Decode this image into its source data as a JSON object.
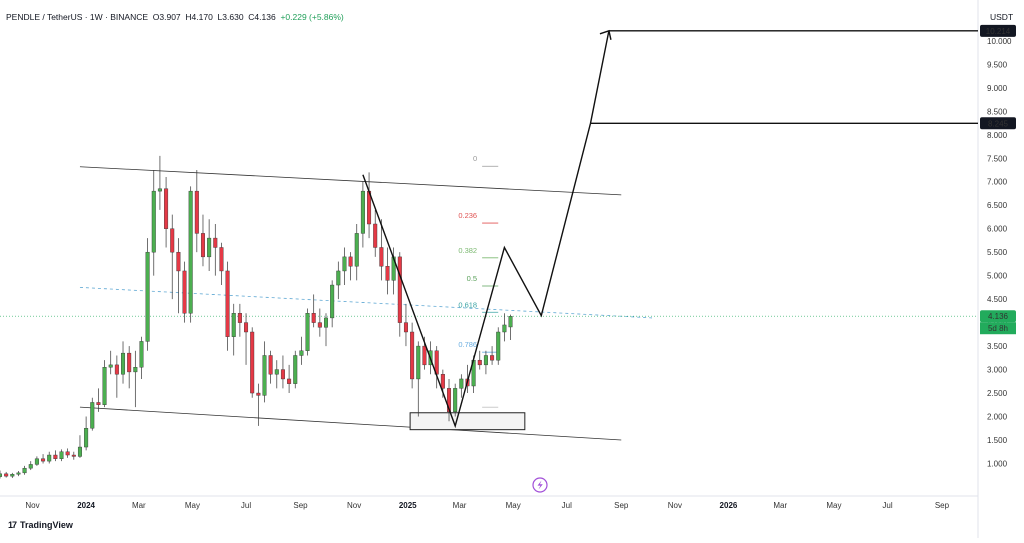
{
  "header": {
    "symbol_line": "PENDLE / TetherUS · 1W · BINANCE",
    "open": "O3.907",
    "high": "H4.170",
    "low": "L3.630",
    "close": "C4.136",
    "change": "+0.229 (+5.86%)",
    "currency": "USDT"
  },
  "footer": {
    "brand": "TradingView",
    "brand_mark": "17"
  },
  "price_tags": {
    "target_high": "10.214",
    "target_mid": "8.245",
    "current": "4.136",
    "countdown": "5d 8h"
  },
  "colors": {
    "up": "#4caf50",
    "down": "#e53946",
    "current_tag": "#22ab5c",
    "fib_dot": "#5fa8d3",
    "fib_0": "#999999",
    "fib_0236": "#e05353",
    "fib_0382": "#7cb971",
    "fib_05": "#5aa05a",
    "fib_0618": "#3aa3a3",
    "fib_0786": "#6aaee0"
  },
  "chart_data": {
    "type": "candlestick",
    "title": "",
    "xlabel": "",
    "ylabel": "",
    "ylim": [
      0.35,
      10.7
    ],
    "y_ticks": [
      1.0,
      1.5,
      2.0,
      2.5,
      3.0,
      3.5,
      4.0,
      4.5,
      5.0,
      5.5,
      6.0,
      6.5,
      7.0,
      7.5,
      8.0,
      8.5,
      9.0,
      9.5,
      10.0
    ],
    "y_tick_labels": [
      "1.000",
      "1.500",
      "2.000",
      "2.500",
      "3.000",
      "3.500",
      "4.000",
      "4.500",
      "5.000",
      "5.500",
      "6.000",
      "6.500",
      "7.000",
      "7.500",
      "8.000",
      "8.500",
      "9.000",
      "9.500",
      "10.000"
    ],
    "x_ticks": [
      {
        "label": "Nov",
        "date": "2023-11-01",
        "bold": false
      },
      {
        "label": "2024",
        "date": "2024-01-01",
        "bold": true
      },
      {
        "label": "Mar",
        "date": "2024-03-01",
        "bold": false
      },
      {
        "label": "May",
        "date": "2024-05-01",
        "bold": false
      },
      {
        "label": "Jul",
        "date": "2024-07-01",
        "bold": false
      },
      {
        "label": "Sep",
        "date": "2024-09-01",
        "bold": false
      },
      {
        "label": "Nov",
        "date": "2024-11-01",
        "bold": false
      },
      {
        "label": "2025",
        "date": "2025-01-01",
        "bold": true
      },
      {
        "label": "Mar",
        "date": "2025-03-01",
        "bold": false
      },
      {
        "label": "May",
        "date": "2025-05-01",
        "bold": false
      },
      {
        "label": "Jul",
        "date": "2025-07-01",
        "bold": false
      },
      {
        "label": "Sep",
        "date": "2025-09-01",
        "bold": false
      },
      {
        "label": "Nov",
        "date": "2025-11-01",
        "bold": false
      },
      {
        "label": "2026",
        "date": "2026-01-01",
        "bold": true
      },
      {
        "label": "Mar",
        "date": "2026-03-01",
        "bold": false
      },
      {
        "label": "May",
        "date": "2026-05-01",
        "bold": false
      },
      {
        "label": "Jul",
        "date": "2026-07-01",
        "bold": false
      },
      {
        "label": "Sep",
        "date": "2026-09-01",
        "bold": false
      }
    ],
    "candles": [
      {
        "date": "2023-09-25",
        "o": 0.72,
        "h": 0.85,
        "l": 0.68,
        "c": 0.78
      },
      {
        "date": "2023-10-02",
        "o": 0.78,
        "h": 0.82,
        "l": 0.7,
        "c": 0.73
      },
      {
        "date": "2023-10-09",
        "o": 0.73,
        "h": 0.8,
        "l": 0.69,
        "c": 0.77
      },
      {
        "date": "2023-10-16",
        "o": 0.77,
        "h": 0.84,
        "l": 0.73,
        "c": 0.8
      },
      {
        "date": "2023-10-23",
        "o": 0.8,
        "h": 0.95,
        "l": 0.76,
        "c": 0.9
      },
      {
        "date": "2023-10-30",
        "o": 0.9,
        "h": 1.05,
        "l": 0.86,
        "c": 0.98
      },
      {
        "date": "2023-11-06",
        "o": 0.98,
        "h": 1.15,
        "l": 0.95,
        "c": 1.1
      },
      {
        "date": "2023-11-13",
        "o": 1.1,
        "h": 1.2,
        "l": 1.0,
        "c": 1.05
      },
      {
        "date": "2023-11-20",
        "o": 1.05,
        "h": 1.25,
        "l": 1.0,
        "c": 1.18
      },
      {
        "date": "2023-11-27",
        "o": 1.18,
        "h": 1.28,
        "l": 1.05,
        "c": 1.1
      },
      {
        "date": "2023-12-04",
        "o": 1.1,
        "h": 1.3,
        "l": 1.05,
        "c": 1.25
      },
      {
        "date": "2023-12-11",
        "o": 1.25,
        "h": 1.32,
        "l": 1.12,
        "c": 1.18
      },
      {
        "date": "2023-12-18",
        "o": 1.18,
        "h": 1.25,
        "l": 1.08,
        "c": 1.15
      },
      {
        "date": "2023-12-25",
        "o": 1.15,
        "h": 1.6,
        "l": 1.12,
        "c": 1.35
      },
      {
        "date": "2024-01-01",
        "o": 1.35,
        "h": 2.0,
        "l": 1.28,
        "c": 1.75
      },
      {
        "date": "2024-01-08",
        "o": 1.75,
        "h": 2.4,
        "l": 1.7,
        "c": 2.3
      },
      {
        "date": "2024-01-15",
        "o": 2.3,
        "h": 2.6,
        "l": 2.1,
        "c": 2.25
      },
      {
        "date": "2024-01-22",
        "o": 2.25,
        "h": 3.2,
        "l": 2.2,
        "c": 3.05
      },
      {
        "date": "2024-01-29",
        "o": 3.05,
        "h": 3.4,
        "l": 2.9,
        "c": 3.1
      },
      {
        "date": "2024-02-05",
        "o": 3.1,
        "h": 3.3,
        "l": 2.4,
        "c": 2.9
      },
      {
        "date": "2024-02-12",
        "o": 2.9,
        "h": 3.6,
        "l": 2.7,
        "c": 3.35
      },
      {
        "date": "2024-02-19",
        "o": 3.35,
        "h": 3.5,
        "l": 2.6,
        "c": 2.95
      },
      {
        "date": "2024-02-26",
        "o": 2.95,
        "h": 3.4,
        "l": 2.2,
        "c": 3.05
      },
      {
        "date": "2024-03-04",
        "o": 3.05,
        "h": 3.7,
        "l": 2.8,
        "c": 3.6
      },
      {
        "date": "2024-03-11",
        "o": 3.6,
        "h": 5.8,
        "l": 3.4,
        "c": 5.5
      },
      {
        "date": "2024-03-18",
        "o": 5.5,
        "h": 7.25,
        "l": 5.0,
        "c": 6.8
      },
      {
        "date": "2024-03-25",
        "o": 6.8,
        "h": 7.55,
        "l": 6.4,
        "c": 6.85
      },
      {
        "date": "2024-04-01",
        "o": 6.85,
        "h": 7.1,
        "l": 5.6,
        "c": 6.0
      },
      {
        "date": "2024-04-08",
        "o": 6.0,
        "h": 6.3,
        "l": 4.5,
        "c": 5.5
      },
      {
        "date": "2024-04-15",
        "o": 5.5,
        "h": 5.8,
        "l": 4.2,
        "c": 5.1
      },
      {
        "date": "2024-04-22",
        "o": 5.1,
        "h": 5.3,
        "l": 4.0,
        "c": 4.2
      },
      {
        "date": "2024-04-29",
        "o": 4.2,
        "h": 6.9,
        "l": 4.0,
        "c": 6.8
      },
      {
        "date": "2024-05-06",
        "o": 6.8,
        "h": 7.25,
        "l": 5.5,
        "c": 5.9
      },
      {
        "date": "2024-05-13",
        "o": 5.9,
        "h": 6.3,
        "l": 5.2,
        "c": 5.4
      },
      {
        "date": "2024-05-20",
        "o": 5.4,
        "h": 6.2,
        "l": 5.1,
        "c": 5.8
      },
      {
        "date": "2024-05-27",
        "o": 5.8,
        "h": 6.1,
        "l": 5.0,
        "c": 5.6
      },
      {
        "date": "2024-06-03",
        "o": 5.6,
        "h": 5.7,
        "l": 4.8,
        "c": 5.1
      },
      {
        "date": "2024-06-10",
        "o": 5.1,
        "h": 5.3,
        "l": 3.4,
        "c": 3.7
      },
      {
        "date": "2024-06-17",
        "o": 3.7,
        "h": 4.4,
        "l": 3.3,
        "c": 4.2
      },
      {
        "date": "2024-06-24",
        "o": 4.2,
        "h": 4.4,
        "l": 3.7,
        "c": 4.0
      },
      {
        "date": "2024-07-01",
        "o": 4.0,
        "h": 4.2,
        "l": 3.1,
        "c": 3.8
      },
      {
        "date": "2024-07-08",
        "o": 3.8,
        "h": 3.9,
        "l": 2.4,
        "c": 2.5
      },
      {
        "date": "2024-07-15",
        "o": 2.5,
        "h": 2.7,
        "l": 1.8,
        "c": 2.45
      },
      {
        "date": "2024-07-22",
        "o": 2.45,
        "h": 3.6,
        "l": 2.3,
        "c": 3.3
      },
      {
        "date": "2024-07-29",
        "o": 3.3,
        "h": 3.4,
        "l": 2.7,
        "c": 2.9
      },
      {
        "date": "2024-08-05",
        "o": 2.9,
        "h": 3.2,
        "l": 2.6,
        "c": 3.0
      },
      {
        "date": "2024-08-12",
        "o": 3.0,
        "h": 3.3,
        "l": 2.6,
        "c": 2.8
      },
      {
        "date": "2024-08-19",
        "o": 2.8,
        "h": 3.1,
        "l": 2.5,
        "c": 2.7
      },
      {
        "date": "2024-08-26",
        "o": 2.7,
        "h": 3.4,
        "l": 2.6,
        "c": 3.3
      },
      {
        "date": "2024-09-02",
        "o": 3.3,
        "h": 3.7,
        "l": 3.1,
        "c": 3.4
      },
      {
        "date": "2024-09-09",
        "o": 3.4,
        "h": 4.3,
        "l": 3.3,
        "c": 4.2
      },
      {
        "date": "2024-09-16",
        "o": 4.2,
        "h": 4.6,
        "l": 3.9,
        "c": 4.0
      },
      {
        "date": "2024-09-23",
        "o": 4.0,
        "h": 4.3,
        "l": 3.7,
        "c": 3.9
      },
      {
        "date": "2024-09-30",
        "o": 3.9,
        "h": 4.2,
        "l": 3.5,
        "c": 4.1
      },
      {
        "date": "2024-10-07",
        "o": 4.1,
        "h": 4.9,
        "l": 3.9,
        "c": 4.8
      },
      {
        "date": "2024-10-14",
        "o": 4.8,
        "h": 5.3,
        "l": 4.5,
        "c": 5.1
      },
      {
        "date": "2024-10-21",
        "o": 5.1,
        "h": 5.6,
        "l": 4.8,
        "c": 5.4
      },
      {
        "date": "2024-10-28",
        "o": 5.4,
        "h": 5.5,
        "l": 4.9,
        "c": 5.2
      },
      {
        "date": "2024-11-04",
        "o": 5.2,
        "h": 6.1,
        "l": 4.9,
        "c": 5.9
      },
      {
        "date": "2024-11-11",
        "o": 5.9,
        "h": 7.0,
        "l": 5.6,
        "c": 6.8
      },
      {
        "date": "2024-11-18",
        "o": 6.8,
        "h": 7.2,
        "l": 5.8,
        "c": 6.1
      },
      {
        "date": "2024-11-25",
        "o": 6.1,
        "h": 6.4,
        "l": 5.4,
        "c": 5.6
      },
      {
        "date": "2024-12-02",
        "o": 5.6,
        "h": 6.2,
        "l": 4.9,
        "c": 5.2
      },
      {
        "date": "2024-12-09",
        "o": 5.2,
        "h": 5.6,
        "l": 4.6,
        "c": 4.9
      },
      {
        "date": "2024-12-16",
        "o": 4.9,
        "h": 5.6,
        "l": 4.6,
        "c": 5.4
      },
      {
        "date": "2024-12-23",
        "o": 5.4,
        "h": 5.5,
        "l": 3.7,
        "c": 4.0
      },
      {
        "date": "2024-12-30",
        "o": 4.0,
        "h": 4.4,
        "l": 3.5,
        "c": 3.8
      },
      {
        "date": "2025-01-06",
        "o": 3.8,
        "h": 4.0,
        "l": 2.6,
        "c": 2.8
      },
      {
        "date": "2025-01-13",
        "o": 2.8,
        "h": 3.6,
        "l": 2.0,
        "c": 3.5
      },
      {
        "date": "2025-01-20",
        "o": 3.5,
        "h": 3.7,
        "l": 3.0,
        "c": 3.1
      },
      {
        "date": "2025-01-27",
        "o": 3.1,
        "h": 3.6,
        "l": 2.9,
        "c": 3.4
      },
      {
        "date": "2025-02-03",
        "o": 3.4,
        "h": 3.5,
        "l": 2.6,
        "c": 2.9
      },
      {
        "date": "2025-02-10",
        "o": 2.9,
        "h": 3.0,
        "l": 2.4,
        "c": 2.6
      },
      {
        "date": "2025-02-17",
        "o": 2.6,
        "h": 2.8,
        "l": 1.9,
        "c": 2.1
      },
      {
        "date": "2025-02-24",
        "o": 2.1,
        "h": 2.7,
        "l": 2.0,
        "c": 2.6
      },
      {
        "date": "2025-03-03",
        "o": 2.6,
        "h": 2.9,
        "l": 2.4,
        "c": 2.8
      },
      {
        "date": "2025-03-10",
        "o": 2.8,
        "h": 3.1,
        "l": 2.5,
        "c": 2.65
      },
      {
        "date": "2025-03-17",
        "o": 2.65,
        "h": 3.3,
        "l": 2.5,
        "c": 3.2
      },
      {
        "date": "2025-03-24",
        "o": 3.2,
        "h": 3.4,
        "l": 3.0,
        "c": 3.1
      },
      {
        "date": "2025-03-31",
        "o": 3.1,
        "h": 3.4,
        "l": 2.9,
        "c": 3.3
      },
      {
        "date": "2025-04-07",
        "o": 3.3,
        "h": 3.5,
        "l": 3.1,
        "c": 3.2
      },
      {
        "date": "2025-04-14",
        "o": 3.2,
        "h": 3.9,
        "l": 3.1,
        "c": 3.8
      },
      {
        "date": "2025-04-21",
        "o": 3.8,
        "h": 4.2,
        "l": 3.6,
        "c": 3.95
      },
      {
        "date": "2025-04-28",
        "o": 3.907,
        "h": 4.17,
        "l": 3.63,
        "c": 4.136
      }
    ],
    "channel_upper": [
      {
        "date": "2023-12-25",
        "y": 7.32
      },
      {
        "date": "2025-09-01",
        "y": 6.72
      }
    ],
    "channel_lower": [
      {
        "date": "2023-12-25",
        "y": 2.2
      },
      {
        "date": "2025-09-01",
        "y": 1.5
      }
    ],
    "dotted_trend": [
      {
        "date": "2023-12-25",
        "y": 4.75
      },
      {
        "date": "2025-10-06",
        "y": 4.1
      }
    ],
    "current_price_line": 4.136,
    "support_box": {
      "x0": "2025-01-06",
      "x1": "2025-05-12",
      "y0": 1.72,
      "y1": 2.08
    },
    "projection_path": [
      {
        "date": "2024-11-11",
        "y": 7.15
      },
      {
        "date": "2025-02-24",
        "y": 1.8
      },
      {
        "date": "2025-04-21",
        "y": 5.6
      },
      {
        "date": "2025-06-02",
        "y": 4.15
      },
      {
        "date": "2025-07-28",
        "y": 8.245
      },
      {
        "date": "2025-08-18",
        "y": 10.214
      }
    ],
    "target_lines": [
      {
        "value": 10.214,
        "from": "2025-08-18"
      },
      {
        "value": 8.245,
        "from": "2025-07-28"
      }
    ],
    "fib_levels": [
      {
        "label": "0",
        "value": 7.33
      },
      {
        "label": "0.236",
        "value": 6.12
      },
      {
        "label": "0.382",
        "value": 5.38
      },
      {
        "label": "0.5",
        "value": 4.78
      },
      {
        "label": "0.618",
        "value": 4.22
      },
      {
        "label": "0.786",
        "value": 3.37
      }
    ],
    "fib_range": {
      "x0": "2025-01-06",
      "x1": "2025-04-14",
      "base": 2.2
    }
  }
}
